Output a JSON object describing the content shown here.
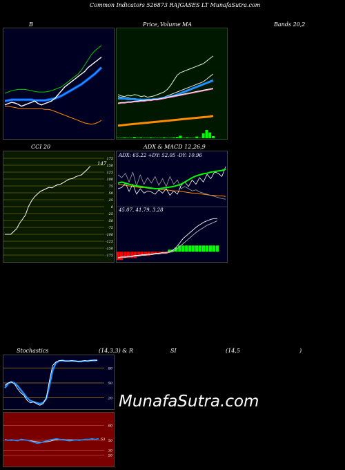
{
  "header": {
    "title": "Common Indicators 526873 RAJGASES LT MunafaSutra.com"
  },
  "watermark": "MunafaSutra.com",
  "colors": {
    "navy": "#000022",
    "green_bg": "#001800",
    "olive_bg": "#0a1a00",
    "maroon": "#7a0000",
    "blue": "#1e90ff",
    "white": "#ffffff",
    "green": "#00cc00",
    "orange": "#ff8c00",
    "gold": "#c8a020",
    "pink": "#ff99cc",
    "bright_green": "#00ff00",
    "red": "#ff0000"
  },
  "labels": {
    "bands": "B",
    "bands_right": "Bands 20,2",
    "price": "Price,",
    "volume": "Volume",
    "ma": "MA",
    "cci": "CCI 20",
    "adx": "ADX  & MACD 12,26,9",
    "stoch": "Stochastics",
    "stoch_params": "(14,3,3) & R",
    "rsi": "SI",
    "rsi_params": "(14,5",
    "rsi_close": ")"
  },
  "chart_data": [
    {
      "type": "line",
      "panel": "bollinger_bands",
      "series": [
        {
          "values": [
            42,
            44,
            46,
            45,
            43,
            40,
            42,
            44,
            46,
            48,
            44,
            42,
            44,
            46,
            48,
            52,
            58,
            64,
            70,
            74,
            78,
            82,
            86,
            90,
            94,
            100,
            104,
            108,
            112,
            116
          ]
        },
        {
          "values": [
            60,
            62,
            64,
            65,
            66,
            66,
            66,
            65,
            64,
            63,
            62,
            62,
            62,
            63,
            64,
            66,
            68,
            70,
            74,
            78,
            82,
            86,
            90,
            96,
            104,
            112,
            120,
            126,
            130,
            134
          ]
        },
        {
          "values": [
            48,
            49,
            50,
            50,
            50,
            50,
            50,
            50,
            50,
            49,
            49,
            49,
            49,
            50,
            51,
            52,
            54,
            56,
            59,
            62,
            65,
            68,
            71,
            74,
            78,
            82,
            86,
            90,
            95,
            100
          ]
        },
        {
          "values": [
            40,
            40,
            39,
            38,
            37,
            36,
            36,
            36,
            36,
            36,
            36,
            36,
            35,
            35,
            34,
            32,
            30,
            28,
            26,
            24,
            22,
            20,
            18,
            16,
            14,
            13,
            12,
            13,
            15,
            18
          ]
        }
      ]
    },
    {
      "type": "line",
      "panel": "price_volume_ma",
      "series": [
        {
          "values": [
            58,
            56,
            55,
            57,
            56,
            58,
            57,
            55,
            56,
            54,
            55,
            56,
            58,
            60,
            62,
            66,
            72,
            80,
            88,
            92,
            94,
            96,
            98,
            100,
            102,
            104,
            106,
            110,
            114,
            118
          ]
        },
        {
          "values": [
            55,
            54,
            53,
            53,
            52,
            52,
            51,
            51,
            50,
            50,
            50,
            51,
            52,
            53,
            54,
            56,
            58,
            60,
            62,
            64,
            66,
            68,
            70,
            72,
            74,
            76,
            78,
            82,
            86,
            90
          ]
        },
        {
          "values": [
            52,
            52,
            52,
            51,
            51,
            51,
            50,
            50,
            50,
            50,
            50,
            51,
            51,
            52,
            53,
            54,
            55,
            56,
            58,
            60,
            62,
            64,
            66,
            68,
            70,
            72,
            74,
            76,
            78,
            80
          ]
        },
        {
          "values": [
            44,
            45,
            45,
            46,
            46,
            47,
            47,
            48,
            48,
            49,
            49,
            50,
            50,
            51,
            52,
            53,
            54,
            55,
            56,
            57,
            58,
            59,
            60,
            61,
            62,
            63,
            64,
            65,
            66,
            67
          ]
        },
        {
          "values": [
            45,
            46,
            46,
            47,
            47,
            48,
            48,
            49,
            49,
            50,
            50,
            51,
            51,
            52,
            53,
            54,
            55,
            56,
            57,
            58,
            59,
            60,
            61,
            62,
            63,
            64,
            65,
            66,
            67,
            68
          ]
        },
        {
          "values": [
            10,
            10.5,
            11,
            11.5,
            12,
            12.5,
            13,
            13.5,
            14,
            14.5,
            15,
            15.5,
            16,
            16.5,
            17,
            17.5,
            18,
            18.5,
            19,
            19.5,
            20,
            20.5,
            21,
            21.5,
            22,
            22.5,
            23,
            23.5,
            24,
            25
          ]
        }
      ],
      "volume": [
        0.1,
        0.1,
        0.2,
        0.1,
        0.1,
        0.3,
        0.1,
        0.2,
        0.1,
        0.1,
        0.2,
        0.1,
        0.1,
        0.1,
        0.2,
        0.1,
        0.1,
        0.2,
        0.3,
        0.6,
        0.1,
        0.2,
        0.1,
        0.1,
        0.4,
        0.1,
        1.2,
        2.0,
        1.4,
        0.5
      ]
    },
    {
      "type": "line",
      "panel": "cci",
      "ticks": [
        "175",
        "150",
        "125",
        "100",
        "75",
        "50",
        "25",
        "0",
        "-25",
        "-50",
        "-75",
        "-100",
        "-125",
        "-150",
        "-175"
      ],
      "ylim": [
        -200,
        200
      ],
      "last_label": "147",
      "values": [
        -100,
        -100,
        -100,
        -90,
        -80,
        -60,
        -45,
        -30,
        0,
        20,
        35,
        45,
        55,
        60,
        65,
        70,
        68,
        75,
        80,
        82,
        88,
        95,
        100,
        102,
        108,
        112,
        115,
        125,
        135,
        147
      ]
    },
    {
      "type": "line",
      "panel": "adx_macd",
      "adx_readout": "ADX: 65.22  +DY: 52.05 -DY: 10.96",
      "macd_readout": "45.07,  41.79,  3.28",
      "adx": {
        "plus_di": [
          30,
          32,
          40,
          25,
          38,
          20,
          30,
          22,
          26,
          24,
          20,
          28,
          22,
          30,
          18,
          26,
          20,
          36,
          42,
          34,
          46,
          38,
          50,
          42,
          56,
          48,
          60,
          58,
          52,
          70
        ],
        "minus_di": [
          55,
          50,
          58,
          42,
          60,
          35,
          55,
          38,
          50,
          40,
          52,
          36,
          48,
          34,
          52,
          38,
          46,
          30,
          34,
          30,
          26,
          28,
          24,
          22,
          20,
          18,
          16,
          14,
          12,
          11
        ],
        "adx": [
          40,
          42,
          40,
          38,
          36,
          35,
          34,
          33,
          32,
          31,
          30,
          30,
          31,
          32,
          33,
          34,
          36,
          38,
          42,
          46,
          50,
          53,
          55,
          57,
          58,
          60,
          61,
          62,
          63,
          65
        ],
        "orange": [
          38,
          37,
          36,
          35,
          34,
          33,
          32,
          32,
          31,
          30,
          30,
          29,
          28,
          28,
          27,
          26,
          26,
          25,
          24,
          23,
          22,
          22,
          21,
          20,
          19,
          18,
          18,
          17,
          17,
          16
        ]
      },
      "macd": {
        "macd": [
          -8,
          -7,
          -7,
          -6,
          -6,
          -5,
          -5,
          -4,
          -4,
          -3,
          -3,
          -2,
          -2,
          -1,
          -1,
          0,
          2,
          6,
          12,
          18,
          22,
          26,
          30,
          34,
          37,
          40,
          42,
          44,
          45,
          45
        ],
        "signal": [
          -9,
          -8,
          -8,
          -7,
          -7,
          -6,
          -6,
          -5,
          -5,
          -4,
          -4,
          -3,
          -3,
          -2,
          -2,
          -1,
          0,
          3,
          7,
          11,
          15,
          19,
          23,
          27,
          30,
          33,
          36,
          38,
          40,
          42
        ],
        "histogram": [
          -4,
          -4,
          -3,
          -3,
          -3,
          -3,
          -2,
          -2,
          -2,
          -2,
          -1,
          -1,
          -1,
          -1,
          -1,
          1,
          1,
          2,
          3,
          3,
          3,
          3,
          3,
          3,
          3,
          3,
          3,
          3,
          3,
          3
        ]
      }
    },
    {
      "type": "line",
      "panel": "stochastics",
      "ticks": [
        "80",
        "50",
        "20"
      ],
      "ylim": [
        0,
        100
      ],
      "fast": [
        45,
        50,
        52,
        48,
        38,
        30,
        25,
        15,
        10,
        12,
        8,
        5,
        8,
        20,
        55,
        85,
        92,
        95,
        95,
        94,
        94,
        95,
        94,
        93,
        94,
        95,
        94,
        95,
        96,
        95
      ],
      "slow": [
        40,
        48,
        52,
        50,
        44,
        36,
        28,
        20,
        14,
        12,
        10,
        8,
        10,
        18,
        45,
        75,
        90,
        94,
        95,
        94,
        94,
        94,
        94,
        93,
        93,
        94,
        94,
        95,
        95,
        96
      ]
    },
    {
      "type": "line",
      "panel": "rsi",
      "ticks": [
        "80",
        "50",
        "30",
        "20"
      ],
      "ylim": [
        0,
        100
      ],
      "last_label": "53",
      "values": [
        52,
        50,
        51,
        50,
        49,
        52,
        51,
        50,
        48,
        46,
        44,
        45,
        47,
        49,
        51,
        52,
        53,
        52,
        51,
        50,
        49,
        50,
        51,
        50,
        51,
        52,
        52,
        53,
        52,
        53
      ],
      "white": [
        51,
        50,
        50,
        50,
        50,
        51,
        51,
        50,
        49,
        48,
        47,
        46,
        46,
        47,
        48,
        50,
        51,
        52,
        52,
        51,
        51,
        51,
        51,
        51,
        51,
        52,
        52,
        52,
        52,
        53
      ]
    }
  ]
}
